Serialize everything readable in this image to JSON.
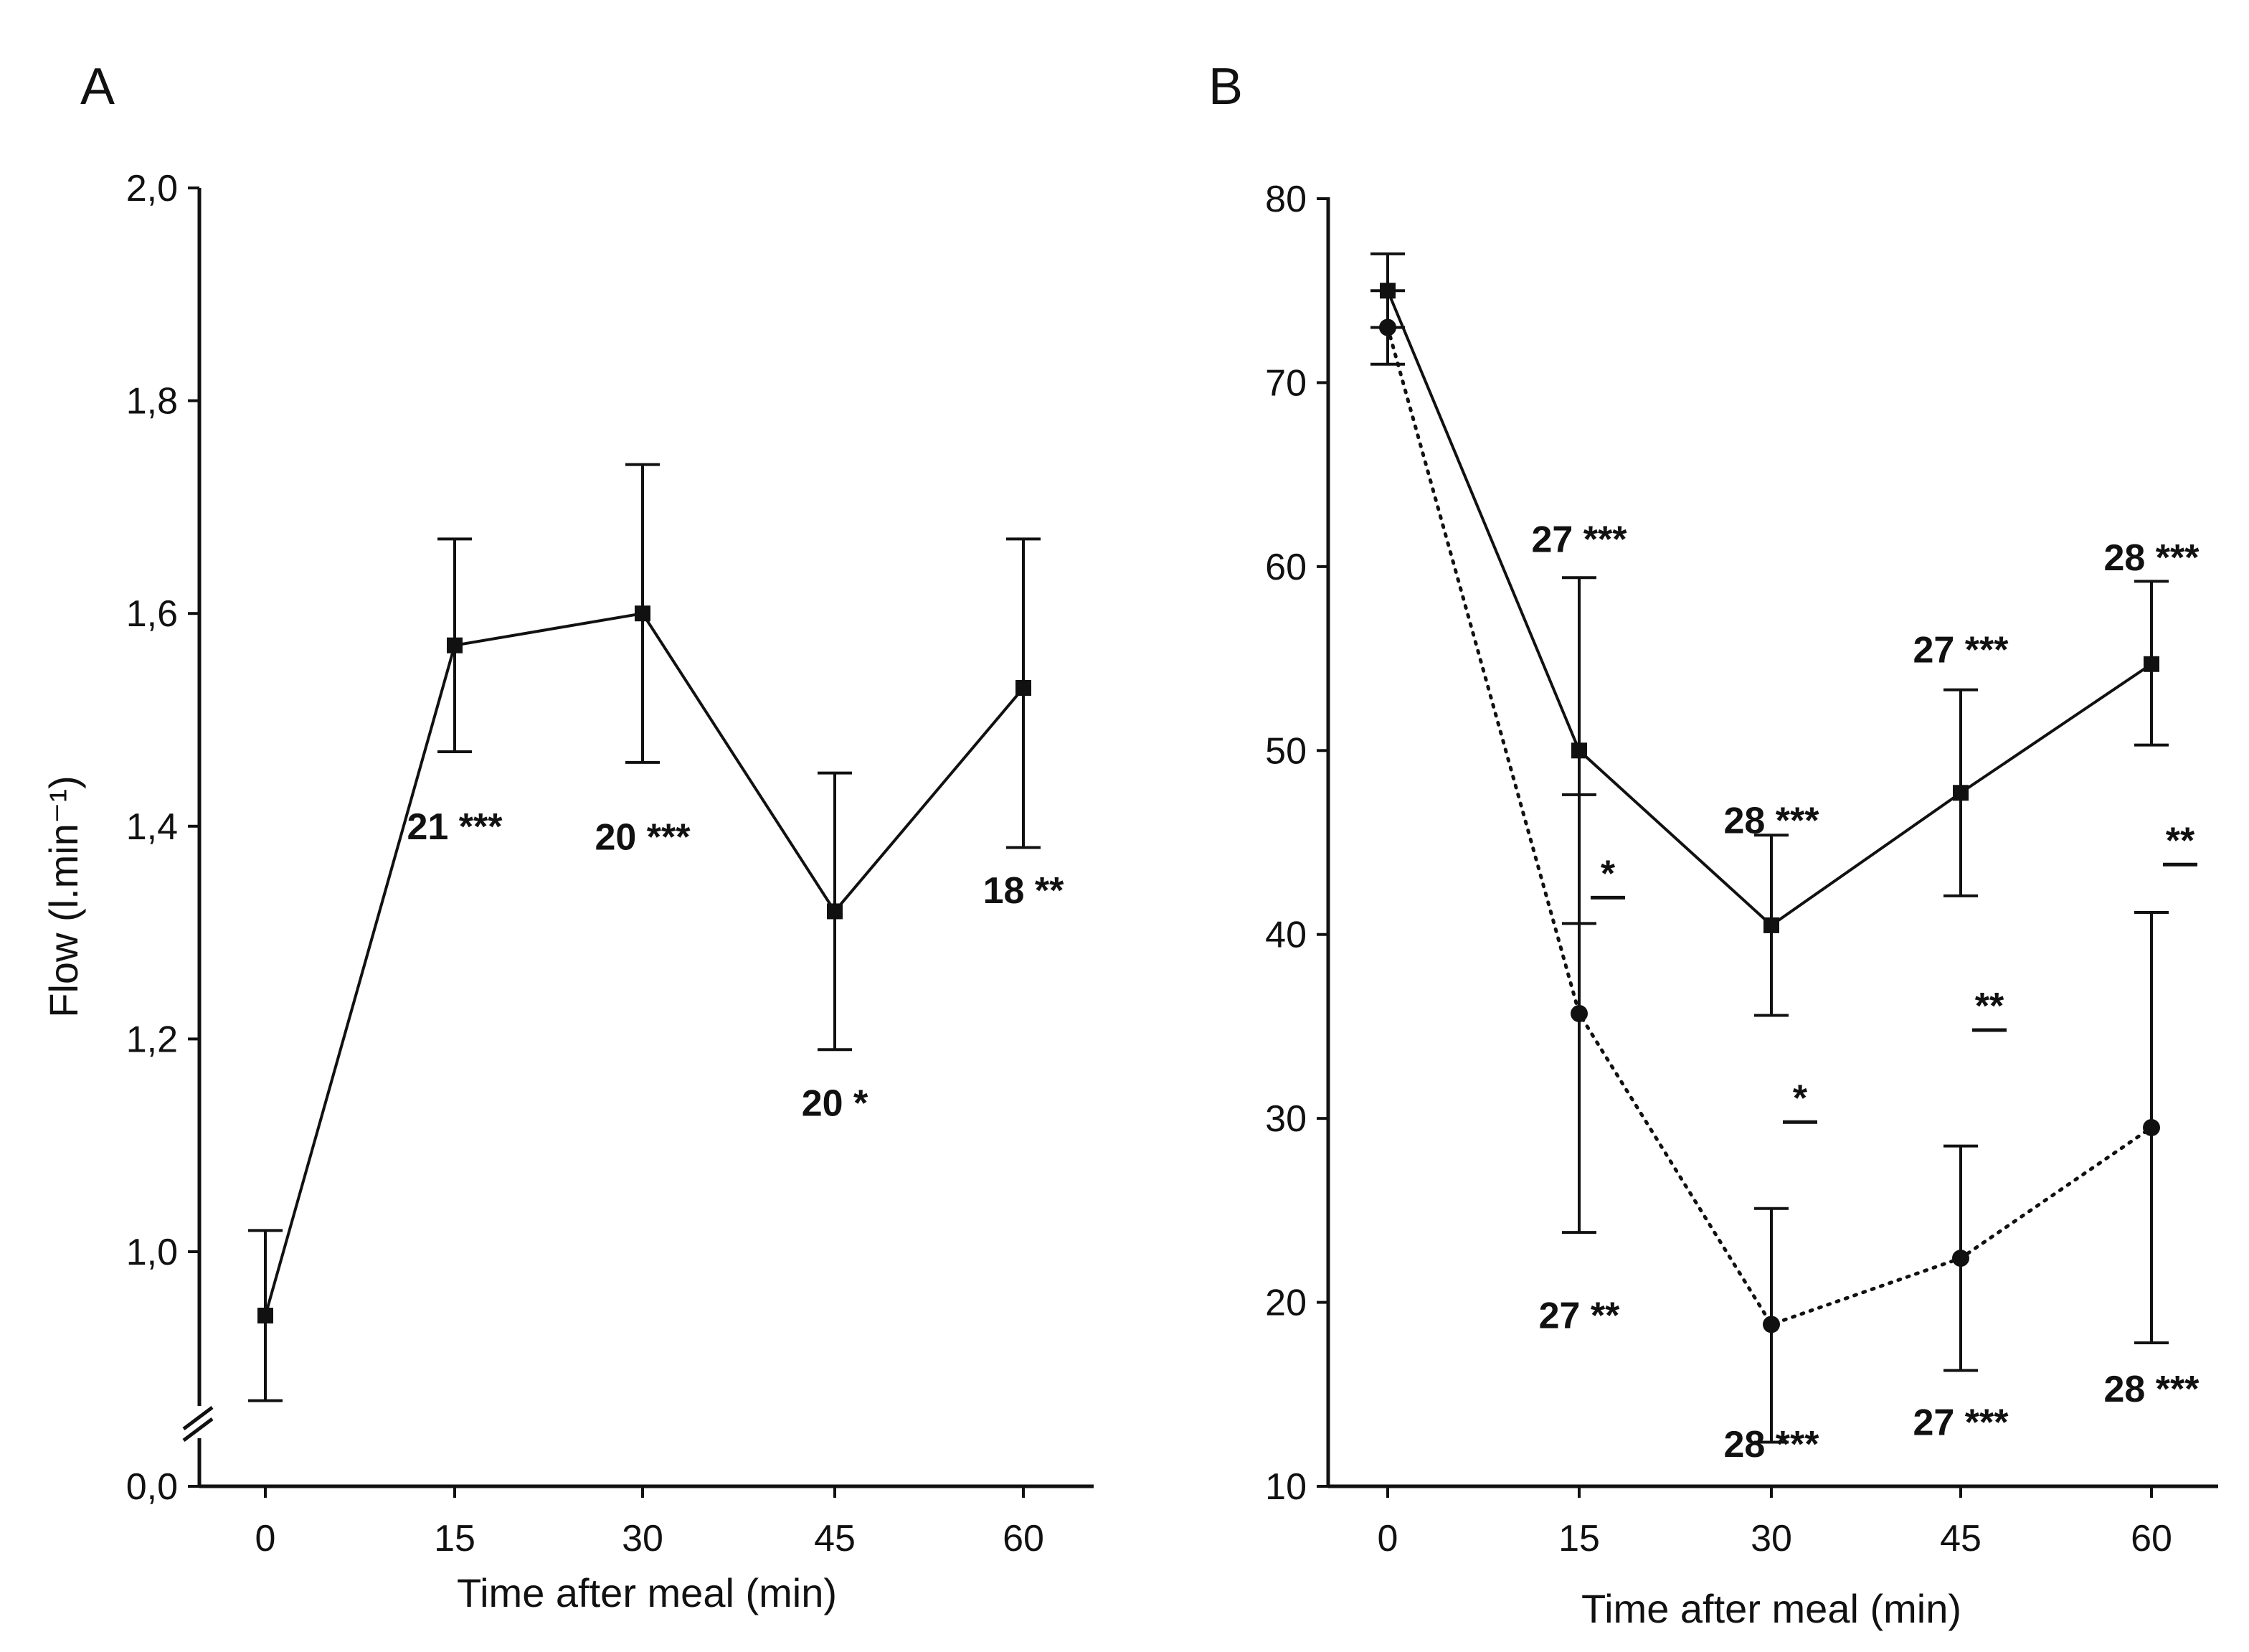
{
  "figure": {
    "panel_labels": [
      "A",
      "B"
    ]
  },
  "chart_data": [
    {
      "panel": "A",
      "type": "line",
      "title": "",
      "xlabel": "Time after meal (min)",
      "ylabel": "Flow (l.min⁻¹)",
      "x": [
        0,
        15,
        30,
        45,
        60
      ],
      "xticks": [
        "0",
        "15",
        "30",
        "45",
        "60"
      ],
      "ylim": [
        0.8,
        2.0
      ],
      "yticks": [
        1.0,
        1.2,
        1.4,
        1.6,
        1.8,
        2.0
      ],
      "ytick_labels": [
        "1,0",
        "1,2",
        "1,4",
        "1,6",
        "1,8",
        "2,0"
      ],
      "broken_axis_label": "0,0",
      "series": [
        {
          "name": "flow",
          "marker": "square",
          "line": "solid",
          "values": [
            0.94,
            1.57,
            1.6,
            1.32,
            1.53
          ],
          "err_low": [
            0.86,
            1.47,
            1.46,
            1.19,
            1.38
          ],
          "err_high": [
            1.02,
            1.67,
            1.74,
            1.45,
            1.67
          ]
        }
      ],
      "annotations": [
        {
          "x": 15,
          "y": 1.4,
          "text": "21 ***"
        },
        {
          "x": 30,
          "y": 1.39,
          "text": "20 ***"
        },
        {
          "x": 45,
          "y": 1.14,
          "text": "20 *"
        },
        {
          "x": 60,
          "y": 1.34,
          "text": "18 **"
        }
      ]
    },
    {
      "panel": "B",
      "type": "line",
      "title": "",
      "xlabel": "Time after meal (min)",
      "ylabel": "",
      "x": [
        0,
        15,
        30,
        45,
        60
      ],
      "xticks": [
        "0",
        "15",
        "30",
        "45",
        "60"
      ],
      "ylim": [
        10,
        80
      ],
      "yticks": [
        10,
        20,
        30,
        40,
        50,
        60,
        70,
        80
      ],
      "ytick_labels": [
        "10",
        "20",
        "30",
        "40",
        "50",
        "60",
        "70",
        "80"
      ],
      "series": [
        {
          "name": "square-solid",
          "marker": "square",
          "line": "solid",
          "values": [
            75,
            50,
            40.5,
            47.7,
            54.7
          ],
          "err_low": [
            73,
            40.6,
            35.6,
            42.1,
            50.3
          ],
          "err_high": [
            77,
            59.4,
            45.4,
            53.3,
            59.2
          ]
        },
        {
          "name": "circle-dotted",
          "marker": "circle",
          "line": "dotted",
          "values": [
            73,
            35.7,
            18.8,
            22.4,
            29.5
          ],
          "err_low": [
            71,
            23.8,
            12.4,
            16.3,
            17.8
          ],
          "err_high": [
            75,
            47.6,
            25.1,
            28.5,
            41.2
          ]
        }
      ],
      "annotations": [
        {
          "x": 15,
          "y": 61.5,
          "text": "27 ***"
        },
        {
          "x": 30,
          "y": 46.2,
          "text": "28 ***"
        },
        {
          "x": 45,
          "y": 55.5,
          "text": "27 ***"
        },
        {
          "x": 60,
          "y": 60.5,
          "text": "28 ***"
        },
        {
          "x": 15,
          "y": 19.3,
          "text": "27 **"
        },
        {
          "x": 30,
          "y": 12.3,
          "text": "28 ***"
        },
        {
          "x": 45,
          "y": 13.5,
          "text": "27 ***"
        },
        {
          "x": 60,
          "y": 15.3,
          "text": "28 ***"
        }
      ],
      "significance": [
        {
          "x": 15,
          "y": 42,
          "text": "*"
        },
        {
          "x": 30,
          "y": 29.8,
          "text": "*"
        },
        {
          "x": 45,
          "y": 34.8,
          "text": "**"
        },
        {
          "x": 60,
          "y": 43.8,
          "text": "**"
        }
      ]
    }
  ]
}
